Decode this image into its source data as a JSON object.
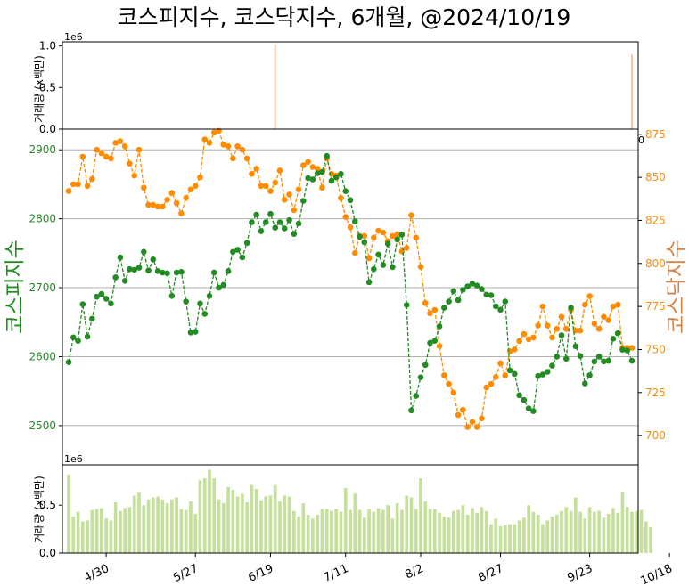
{
  "chart_data": [
    {
      "type": "bar",
      "panel": "top-volume",
      "ylabel": "거래량 (x백만)",
      "offset_text": "1e6",
      "ylim": [
        0,
        1.05
      ],
      "yticks": [
        "0.0",
        "0.5",
        "1.0"
      ],
      "bars": [
        {
          "date": "6/18",
          "value": 1.02
        },
        {
          "date": "10/18",
          "value": 0.9
        }
      ],
      "color": "#f9c9a6"
    },
    {
      "type": "line",
      "panel": "main",
      "title": "코스피지수, 코스닥지수, 6개월, @2024/10/19",
      "y_left_label": "코스피지수",
      "y_right_label": "코스닥지수",
      "y_left_color": "#228b22",
      "y_right_color": "#ff8c00",
      "y_left_ticks": [
        "2500",
        "2600",
        "2700",
        "2800",
        "2900"
      ],
      "y_right_ticks": [
        "700",
        "725",
        "750",
        "775",
        "800",
        "825",
        "850",
        "875"
      ],
      "y_left_range": [
        2443,
        2930
      ],
      "y_right_range": [
        683,
        878
      ],
      "right_axis_zero_label": "0",
      "x_ticks": [
        "4/30",
        "5/27",
        "6/19",
        "7/11",
        "8/2",
        "8/27",
        "9/23",
        "10/18"
      ],
      "x_tick_index": [
        8,
        27,
        43,
        59,
        75,
        92,
        111,
        128
      ],
      "grid": "horizontal",
      "series": [
        {
          "name": "코스피지수",
          "color": "#228b22",
          "values": [
            2592,
            2628,
            2623,
            2676,
            2629,
            2655,
            2687,
            2691,
            2684,
            2677,
            2715,
            2744,
            2710,
            2727,
            2726,
            2729,
            2752,
            2725,
            2741,
            2724,
            2722,
            2721,
            2688,
            2722,
            2723,
            2680,
            2635,
            2636,
            2677,
            2662,
            2688,
            2722,
            2700,
            2704,
            2724,
            2752,
            2755,
            2744,
            2765,
            2795,
            2806,
            2782,
            2795,
            2807,
            2787,
            2795,
            2786,
            2798,
            2778,
            2793,
            2826,
            2859,
            2857,
            2866,
            2868,
            2891,
            2855,
            2860,
            2865,
            2840,
            2827,
            2796,
            2774,
            2766,
            2708,
            2727,
            2748,
            2733,
            2764,
            2730,
            2770,
            2777,
            2675,
            2522,
            2543,
            2570,
            2588,
            2620,
            2623,
            2644,
            2671,
            2680,
            2695,
            2682,
            2697,
            2702,
            2706,
            2703,
            2698,
            2690,
            2689,
            2673,
            2668,
            2680,
            2580,
            2575,
            2544,
            2537,
            2525,
            2521,
            2572,
            2574,
            2578,
            2587,
            2600,
            2631,
            2597,
            2671,
            2615,
            2601,
            2561,
            2573,
            2593,
            2600,
            2593,
            2594,
            2626,
            2634,
            2610,
            2609,
            2594
          ]
        },
        {
          "name": "코스닥지수",
          "color": "#ff8c00",
          "values": [
            842,
            846,
            846,
            862,
            845,
            849,
            866,
            864,
            862,
            861,
            870,
            871,
            868,
            858,
            851,
            866,
            844,
            834,
            834,
            833,
            833,
            837,
            841,
            835,
            829,
            838,
            843,
            845,
            850,
            872,
            870,
            876,
            877,
            869,
            868,
            861,
            868,
            866,
            861,
            852,
            855,
            845,
            845,
            842,
            847,
            854,
            837,
            840,
            831,
            843,
            857,
            859,
            856,
            855,
            844,
            861,
            852,
            851,
            838,
            827,
            821,
            806,
            816,
            816,
            803,
            815,
            819,
            818,
            813,
            816,
            817,
            807,
            809,
            828,
            815,
            798,
            777,
            771,
            773,
            752,
            735,
            730,
            725,
            712,
            715,
            705,
            708,
            705,
            710,
            728,
            730,
            734,
            742,
            735,
            749,
            750,
            755,
            759,
            756,
            757,
            764,
            775,
            764,
            757,
            762,
            769,
            762,
            773,
            761,
            761,
            776,
            781,
            765,
            762,
            769,
            767,
            775,
            776,
            751,
            751,
            751
          ],
          "values_note": ""
        }
      ]
    },
    {
      "type": "bar",
      "panel": "bottom-volume",
      "ylabel": "거래량 (x백만)",
      "offset_text": "1e6",
      "ylim": [
        0,
        0.92
      ],
      "yticks": [
        "0.0",
        "0.5"
      ],
      "color": "#c5e09a",
      "values": [
        0.82,
        0.38,
        0.43,
        0.33,
        0.34,
        0.45,
        0.46,
        0.47,
        0.36,
        0.34,
        0.53,
        0.44,
        0.47,
        0.48,
        0.6,
        0.63,
        0.5,
        0.56,
        0.58,
        0.59,
        0.56,
        0.52,
        0.56,
        0.58,
        0.46,
        0.45,
        0.54,
        0.41,
        0.76,
        0.78,
        0.87,
        0.78,
        0.56,
        0.52,
        0.69,
        0.66,
        0.59,
        0.62,
        0.53,
        0.71,
        0.67,
        0.55,
        0.59,
        0.6,
        0.71,
        0.54,
        0.6,
        0.59,
        0.44,
        0.38,
        0.52,
        0.4,
        0.36,
        0.4,
        0.46,
        0.46,
        0.44,
        0.46,
        0.43,
        0.68,
        0.45,
        0.62,
        0.45,
        0.37,
        0.46,
        0.43,
        0.47,
        0.45,
        0.5,
        0.36,
        0.52,
        0.45,
        0.6,
        0.58,
        0.46,
        0.78,
        0.54,
        0.46,
        0.46,
        0.42,
        0.38,
        0.37,
        0.44,
        0.45,
        0.5,
        0.4,
        0.47,
        0.42,
        0.48,
        0.44,
        0.3,
        0.36,
        0.28,
        0.29,
        0.3,
        0.3,
        0.34,
        0.37,
        0.5,
        0.43,
        0.4,
        0.3,
        0.34,
        0.38,
        0.4,
        0.44,
        0.48,
        0.44,
        0.58,
        0.43,
        0.36,
        0.48,
        0.43,
        0.44,
        0.37,
        0.41,
        0.47,
        0.42,
        0.64,
        0.48,
        0.43,
        0.44,
        0.45,
        0.33,
        0.27
      ]
    }
  ]
}
